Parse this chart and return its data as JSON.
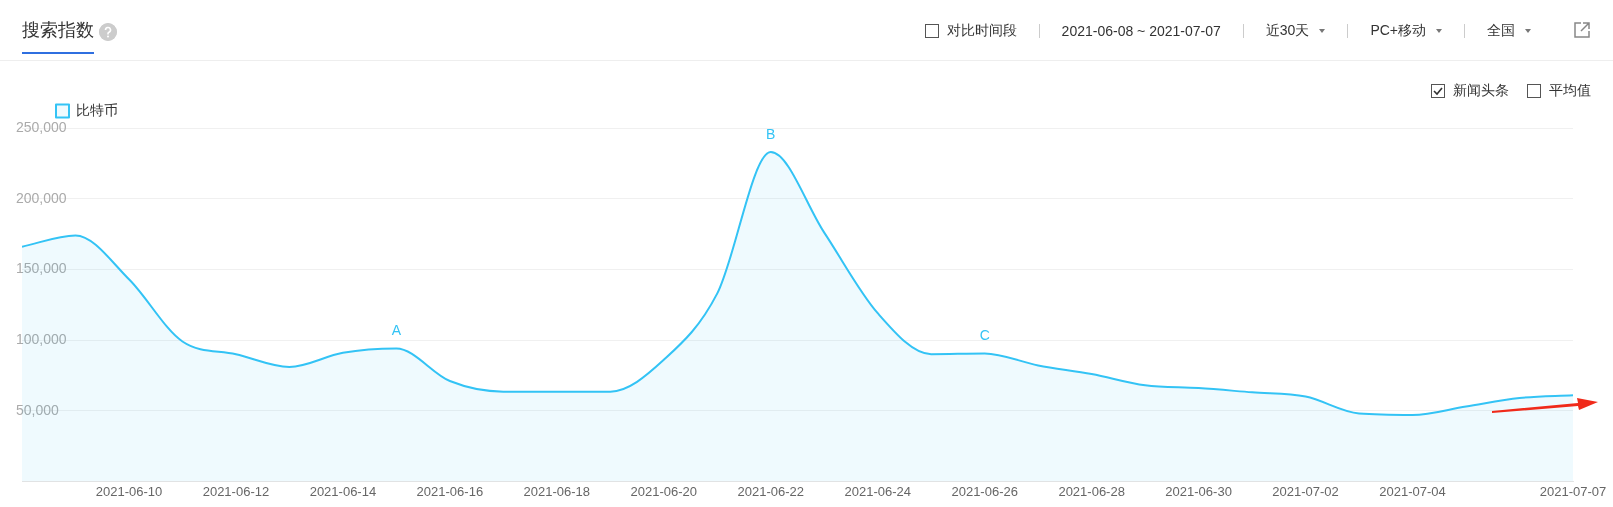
{
  "chart_data": {
    "type": "area",
    "title": "搜索指数",
    "x": [
      "2021-06-08",
      "2021-06-09",
      "2021-06-10",
      "2021-06-11",
      "2021-06-12",
      "2021-06-13",
      "2021-06-14",
      "2021-06-15",
      "2021-06-16",
      "2021-06-17",
      "2021-06-18",
      "2021-06-19",
      "2021-06-20",
      "2021-06-21",
      "2021-06-22",
      "2021-06-23",
      "2021-06-24",
      "2021-06-25",
      "2021-06-26",
      "2021-06-27",
      "2021-06-28",
      "2021-06-29",
      "2021-06-30",
      "2021-07-01",
      "2021-07-02",
      "2021-07-03",
      "2021-07-04",
      "2021-07-05",
      "2021-07-06",
      "2021-07-07"
    ],
    "series": [
      {
        "name": "比特币",
        "color": "#33c3f5",
        "values": [
          166000,
          174000,
          143000,
          99000,
          90000,
          81000,
          91000,
          94000,
          71000,
          63500,
          63500,
          63500,
          86000,
          133000,
          233000,
          176000,
          119000,
          90000,
          90500,
          82000,
          76000,
          68000,
          66000,
          63000,
          60000,
          48000,
          47000,
          53000,
          59000,
          61000
        ]
      }
    ],
    "xlim": [
      "2021-06-08",
      "2021-07-07"
    ],
    "xticks": [
      "2021-06-10",
      "2021-06-12",
      "2021-06-14",
      "2021-06-16",
      "2021-06-18",
      "2021-06-20",
      "2021-06-22",
      "2021-06-24",
      "2021-06-26",
      "2021-06-28",
      "2021-06-30",
      "2021-07-02",
      "2021-07-04",
      "2021-07-07"
    ],
    "ylim": [
      0,
      250000
    ],
    "yticks": [
      {
        "value": 50000,
        "label": "50,000"
      },
      {
        "value": 100000,
        "label": "100,000"
      },
      {
        "value": 150000,
        "label": "150,000"
      },
      {
        "value": 200000,
        "label": "200,000"
      },
      {
        "value": 250000,
        "label": "250,000"
      }
    ],
    "grid": "y",
    "legend": "top left",
    "marker": "none",
    "line_style": "solid",
    "annotations": [
      "对比时间段",
      "2021-06-08 ~ 2021-07-07",
      "近30天",
      "PC+移动",
      "全国",
      "新闻头条",
      "平均值",
      {
        "text": "A",
        "x": "2021-06-15",
        "y": 94000
      },
      {
        "text": "B",
        "x": "2021-06-22",
        "y": 233000
      },
      {
        "text": "C",
        "x": "2021-06-26",
        "y": 90500
      }
    ]
  }
}
